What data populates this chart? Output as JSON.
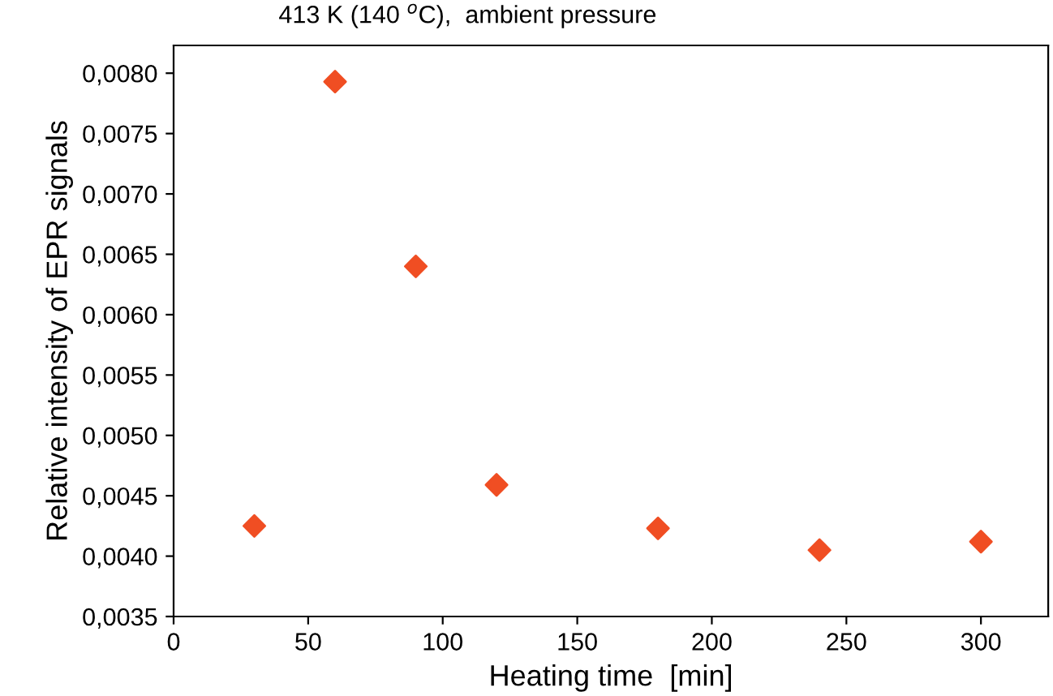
{
  "chart_data": {
    "type": "scatter",
    "title": "413 K (140 $^{o}$C),  ambient pressure",
    "xlabel": "Heating time  [min]",
    "ylabel": "Relative intensity of EPR signals",
    "x": [
      30,
      60,
      90,
      120,
      180,
      240,
      300
    ],
    "series": [
      {
        "color": "#f04e23",
        "values": [
          0.00425,
          0.00793,
          0.0064,
          0.00459,
          0.00423,
          0.00405,
          0.00412
        ]
      }
    ],
    "marker": "diamond",
    "xlim": [
      0,
      325
    ],
    "xticks": [
      0,
      50,
      100,
      150,
      200,
      250,
      300
    ],
    "ylim": [
      0.0035,
      0.00823
    ],
    "yticks": [
      {
        "value": 0.0035,
        "label": "0,0035"
      },
      {
        "value": 0.004,
        "label": "0,0040"
      },
      {
        "value": 0.0045,
        "label": "0,0045"
      },
      {
        "value": 0.005,
        "label": "0,0050"
      },
      {
        "value": 0.0055,
        "label": "0,0055"
      },
      {
        "value": 0.006,
        "label": "0,0060"
      },
      {
        "value": 0.0065,
        "label": "0,0065"
      },
      {
        "value": 0.007,
        "label": "0,0070"
      },
      {
        "value": 0.0075,
        "label": "0,0075"
      },
      {
        "value": 0.008,
        "label": "0,0080"
      }
    ],
    "grid": false
  }
}
